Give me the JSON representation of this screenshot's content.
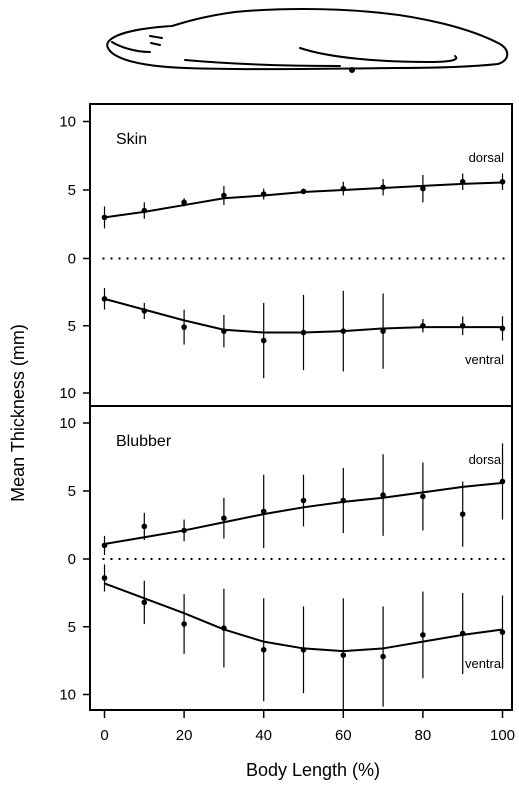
{
  "chart_data": {
    "type": "line",
    "xlabel": "Body Length (%)",
    "ylabel": "Mean Thickness (mm)",
    "xlim": [
      0,
      100
    ],
    "xticks": [
      "0",
      "20",
      "40",
      "60",
      "80",
      "100"
    ],
    "grid": false,
    "illustration": "seal-body-outline",
    "panels": [
      {
        "title": "Skin",
        "dorsal_label": "dorsal",
        "ventral_label": "ventral",
        "ylim": [
          0,
          10
        ],
        "yticks": [
          "10",
          "5",
          "0",
          "5",
          "10"
        ],
        "series": [
          {
            "name": "dorsal",
            "x": [
              0,
              10,
              20,
              30,
              40,
              50,
              60,
              70,
              80,
              90,
              100
            ],
            "y": [
              3.0,
              3.5,
              4.1,
              4.6,
              4.7,
              4.9,
              5.1,
              5.2,
              5.1,
              5.6,
              5.6
            ],
            "err": [
              0.8,
              0.6,
              0.3,
              0.7,
              0.4,
              0.2,
              0.5,
              0.6,
              1.0,
              0.6,
              0.6
            ],
            "fit": [
              3.0,
              3.4,
              3.9,
              4.4,
              4.6,
              4.85,
              5.0,
              5.15,
              5.3,
              5.45,
              5.55
            ]
          },
          {
            "name": "ventral",
            "x": [
              0,
              10,
              20,
              30,
              40,
              50,
              60,
              70,
              80,
              90,
              100
            ],
            "y": [
              3.0,
              3.9,
              5.1,
              5.4,
              6.1,
              5.5,
              5.4,
              5.4,
              5.0,
              5.0,
              5.2
            ],
            "err": [
              0.8,
              0.6,
              1.3,
              1.2,
              2.8,
              2.8,
              3.0,
              2.8,
              0.5,
              0.7,
              0.9
            ],
            "fit": [
              3.0,
              3.8,
              4.6,
              5.3,
              5.5,
              5.5,
              5.4,
              5.2,
              5.1,
              5.1,
              5.1
            ]
          }
        ]
      },
      {
        "title": "Blubber",
        "dorsal_label": "dorsal",
        "ventral_label": "ventral",
        "ylim": [
          0,
          10
        ],
        "yticks": [
          "10",
          "5",
          "0",
          "5",
          "10"
        ],
        "series": [
          {
            "name": "dorsal",
            "x": [
              0,
              10,
              20,
              30,
              40,
              50,
              60,
              70,
              80,
              90,
              100
            ],
            "y": [
              1.0,
              2.4,
              2.1,
              3.0,
              3.5,
              4.3,
              4.3,
              4.7,
              4.6,
              3.3,
              5.7
            ],
            "err": [
              0.7,
              1.0,
              0.8,
              1.5,
              2.7,
              1.9,
              2.4,
              3.0,
              2.5,
              2.4,
              2.8
            ],
            "fit": [
              1.1,
              1.6,
              2.1,
              2.7,
              3.3,
              3.8,
              4.2,
              4.5,
              4.9,
              5.3,
              5.6
            ]
          },
          {
            "name": "ventral",
            "x": [
              0,
              10,
              20,
              30,
              40,
              50,
              60,
              70,
              80,
              90,
              100
            ],
            "y": [
              1.4,
              3.2,
              4.8,
              5.1,
              6.7,
              6.7,
              7.1,
              7.2,
              5.6,
              5.5,
              5.4
            ],
            "err": [
              1.0,
              1.6,
              2.2,
              2.9,
              3.8,
              3.2,
              4.2,
              3.7,
              3.2,
              3.0,
              2.7
            ],
            "fit": [
              1.8,
              2.9,
              4.0,
              5.2,
              6.1,
              6.6,
              6.8,
              6.6,
              6.1,
              5.6,
              5.2
            ]
          }
        ]
      }
    ]
  }
}
